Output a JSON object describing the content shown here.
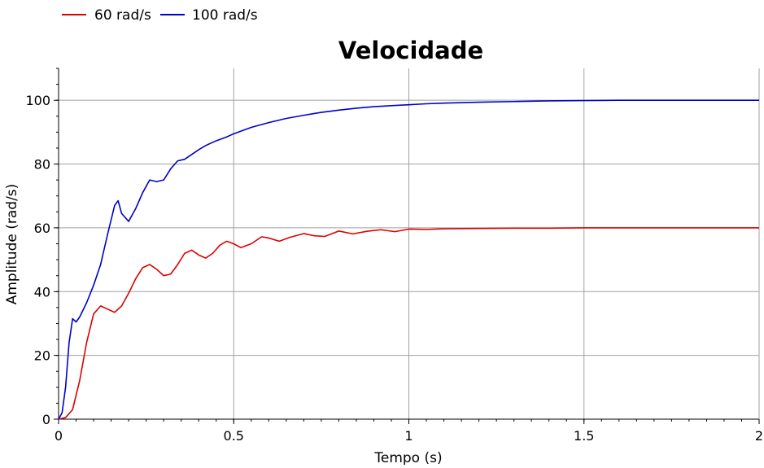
{
  "chart_data": {
    "type": "line",
    "title": "Velocidade",
    "xlabel": "Tempo (s)",
    "ylabel": "Amplitude (rad/s)",
    "xlim": [
      0,
      2
    ],
    "ylim": [
      0,
      110
    ],
    "x_ticks": [
      "0",
      "0.5",
      "1",
      "1.5",
      "2"
    ],
    "y_ticks": [
      "0",
      "20",
      "40",
      "60",
      "80",
      "100"
    ],
    "grid": true,
    "legend_position": "top-left",
    "series": [
      {
        "name": "60 rad/s",
        "color": "#dd0000",
        "x": [
          0,
          0.02,
          0.04,
          0.06,
          0.08,
          0.1,
          0.12,
          0.14,
          0.16,
          0.18,
          0.2,
          0.22,
          0.24,
          0.26,
          0.28,
          0.3,
          0.32,
          0.34,
          0.36,
          0.38,
          0.4,
          0.42,
          0.44,
          0.46,
          0.48,
          0.5,
          0.52,
          0.55,
          0.58,
          0.6,
          0.63,
          0.66,
          0.7,
          0.73,
          0.76,
          0.8,
          0.84,
          0.88,
          0.92,
          0.96,
          1.0,
          1.05,
          1.1,
          1.2,
          1.3,
          1.4,
          1.5,
          1.6,
          1.7,
          1.8,
          1.9,
          2.0
        ],
        "y": [
          0,
          0.5,
          3,
          12,
          24,
          33,
          35.5,
          34.5,
          33.5,
          35.5,
          39.5,
          44,
          47.5,
          48.5,
          47,
          45,
          45.5,
          48.5,
          52,
          53,
          51.5,
          50.5,
          52,
          54.5,
          55.8,
          55,
          53.8,
          55,
          57.2,
          56.8,
          55.8,
          57,
          58.2,
          57.5,
          57.3,
          59,
          58.1,
          58.9,
          59.4,
          58.8,
          59.6,
          59.5,
          59.7,
          59.8,
          59.9,
          59.9,
          60,
          60,
          60,
          60,
          60,
          60
        ]
      },
      {
        "name": "100 rad/s",
        "color": "#0000cc",
        "x": [
          0,
          0.01,
          0.02,
          0.03,
          0.04,
          0.05,
          0.06,
          0.08,
          0.1,
          0.12,
          0.14,
          0.16,
          0.17,
          0.18,
          0.2,
          0.22,
          0.24,
          0.26,
          0.28,
          0.3,
          0.32,
          0.34,
          0.36,
          0.38,
          0.4,
          0.42,
          0.45,
          0.48,
          0.5,
          0.55,
          0.6,
          0.65,
          0.7,
          0.75,
          0.8,
          0.85,
          0.9,
          0.95,
          1.0,
          1.05,
          1.1,
          1.2,
          1.3,
          1.4,
          1.5,
          1.6,
          1.8,
          2.0
        ],
        "y": [
          0,
          2,
          10,
          24,
          31.5,
          30.5,
          32,
          36.5,
          42,
          48.5,
          58,
          67,
          68.5,
          64.5,
          62,
          66,
          71,
          75,
          74.5,
          75,
          78.5,
          81,
          81.5,
          83,
          84.5,
          85.8,
          87.3,
          88.5,
          89.5,
          91.5,
          93,
          94.3,
          95.3,
          96.2,
          96.9,
          97.5,
          98,
          98.3,
          98.6,
          98.9,
          99.1,
          99.4,
          99.6,
          99.8,
          99.9,
          100,
          100,
          100
        ]
      }
    ]
  }
}
